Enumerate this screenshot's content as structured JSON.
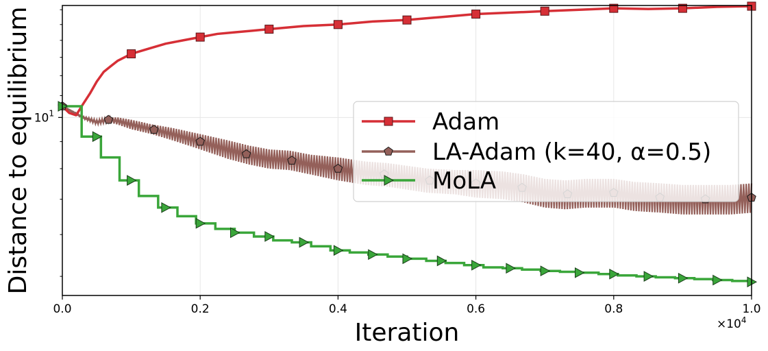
{
  "chart_data": {
    "type": "line",
    "title": "",
    "xlabel": "Iteration",
    "ylabel": "Distance to equilibrium",
    "x_scale_label": "×10^4",
    "x_multiplier_text": "×10",
    "x_multiplier_exp": "4",
    "xlim": [
      0,
      1.0
    ],
    "ylim_log": [
      4.6,
      16.3
    ],
    "y_scale": "log",
    "x_ticks": [
      0.0,
      0.2,
      0.4,
      0.6,
      0.8,
      1.0
    ],
    "x_tick_labels": [
      "0.0",
      "0.2",
      "0.4",
      "0.6",
      "0.8",
      "1.0"
    ],
    "y_major_tick": 10,
    "y_major_tick_base": "10",
    "y_major_tick_exp": "1",
    "y_minor_ticks": [
      5,
      6,
      7,
      8,
      9,
      11,
      12,
      13,
      14,
      15,
      16
    ],
    "grid": true,
    "legend_position": "center-right",
    "series": [
      {
        "name": "Adam",
        "color": "#d62f36",
        "marker": "square",
        "x": [
          0.0,
          0.01,
          0.02,
          0.03,
          0.04,
          0.05,
          0.06,
          0.07,
          0.08,
          0.09,
          0.1,
          0.125,
          0.15,
          0.175,
          0.2,
          0.225,
          0.25,
          0.275,
          0.3,
          0.325,
          0.35,
          0.375,
          0.4,
          0.45,
          0.5,
          0.55,
          0.6,
          0.65,
          0.7,
          0.75,
          0.8,
          0.85,
          0.9,
          0.95,
          1.0
        ],
        "y": [
          10.5,
          10.2,
          10.1,
          10.6,
          11.1,
          11.7,
          12.2,
          12.5,
          12.8,
          13.0,
          13.2,
          13.5,
          13.8,
          14.0,
          14.2,
          14.4,
          14.5,
          14.6,
          14.7,
          14.8,
          14.9,
          14.95,
          15.0,
          15.2,
          15.3,
          15.5,
          15.7,
          15.8,
          15.9,
          16.0,
          16.1,
          16.05,
          16.1,
          16.2,
          16.25
        ],
        "marker_x": [
          0.1,
          0.2,
          0.3,
          0.4,
          0.5,
          0.6,
          0.7,
          0.8,
          0.9,
          1.0
        ]
      },
      {
        "name": "LA-Adam (k=40, α=0.5)",
        "color": "#94605a",
        "marker": "pentagon",
        "x": [
          0.0,
          0.03,
          0.05,
          0.067,
          0.08,
          0.1,
          0.13,
          0.16,
          0.2,
          0.24,
          0.27,
          0.3,
          0.33,
          0.36,
          0.4,
          0.44,
          0.47,
          0.5,
          0.53,
          0.57,
          0.6,
          0.64,
          0.67,
          0.7,
          0.73,
          0.76,
          0.8,
          0.83,
          0.87,
          0.9,
          0.93,
          0.97,
          1.0
        ],
        "y": [
          10.5,
          10.0,
          9.8,
          9.9,
          9.85,
          9.7,
          9.5,
          9.3,
          9.0,
          8.7,
          8.5,
          8.35,
          8.3,
          8.15,
          8.0,
          7.85,
          7.8,
          7.7,
          7.6,
          7.55,
          7.5,
          7.45,
          7.35,
          7.2,
          7.15,
          7.2,
          7.2,
          7.1,
          7.05,
          7.0,
          7.0,
          7.0,
          7.05
        ],
        "band_width": [
          0,
          0.05,
          0.1,
          0.1,
          0.15,
          0.2,
          0.2,
          0.25,
          0.3,
          0.35,
          0.35,
          0.35,
          0.35,
          0.35,
          0.4,
          0.4,
          0.4,
          0.4,
          0.4,
          0.4,
          0.45,
          0.45,
          0.45,
          0.45,
          0.45,
          0.45,
          0.45,
          0.45,
          0.45,
          0.45,
          0.45,
          0.45,
          0.45
        ],
        "marker_x": [
          0.0,
          0.067,
          0.133,
          0.2,
          0.267,
          0.333,
          0.4,
          0.467,
          0.533,
          0.6,
          0.667,
          0.733,
          0.8,
          0.867,
          0.933,
          1.0
        ]
      },
      {
        "name": "MoLA",
        "color": "#3aa63a",
        "marker": "triangle-right",
        "x": [
          0.0,
          0.028,
          0.056,
          0.083,
          0.111,
          0.139,
          0.167,
          0.194,
          0.222,
          0.25,
          0.278,
          0.306,
          0.333,
          0.361,
          0.389,
          0.417,
          0.444,
          0.472,
          0.5,
          0.528,
          0.556,
          0.583,
          0.611,
          0.639,
          0.667,
          0.694,
          0.722,
          0.75,
          0.778,
          0.806,
          0.833,
          0.861,
          0.889,
          0.917,
          0.944,
          0.972,
          1.0
        ],
        "y": [
          10.5,
          9.2,
          8.4,
          7.6,
          7.1,
          6.75,
          6.5,
          6.3,
          6.15,
          6.05,
          5.95,
          5.85,
          5.8,
          5.7,
          5.6,
          5.55,
          5.5,
          5.45,
          5.4,
          5.35,
          5.3,
          5.25,
          5.2,
          5.18,
          5.15,
          5.12,
          5.1,
          5.08,
          5.05,
          5.02,
          5.0,
          4.98,
          4.96,
          4.94,
          4.92,
          4.9,
          4.88
        ],
        "marker_x": [
          0.0,
          0.05,
          0.1,
          0.15,
          0.2,
          0.25,
          0.3,
          0.35,
          0.4,
          0.45,
          0.5,
          0.55,
          0.6,
          0.65,
          0.7,
          0.75,
          0.8,
          0.85,
          0.9,
          0.95,
          1.0
        ]
      }
    ]
  }
}
